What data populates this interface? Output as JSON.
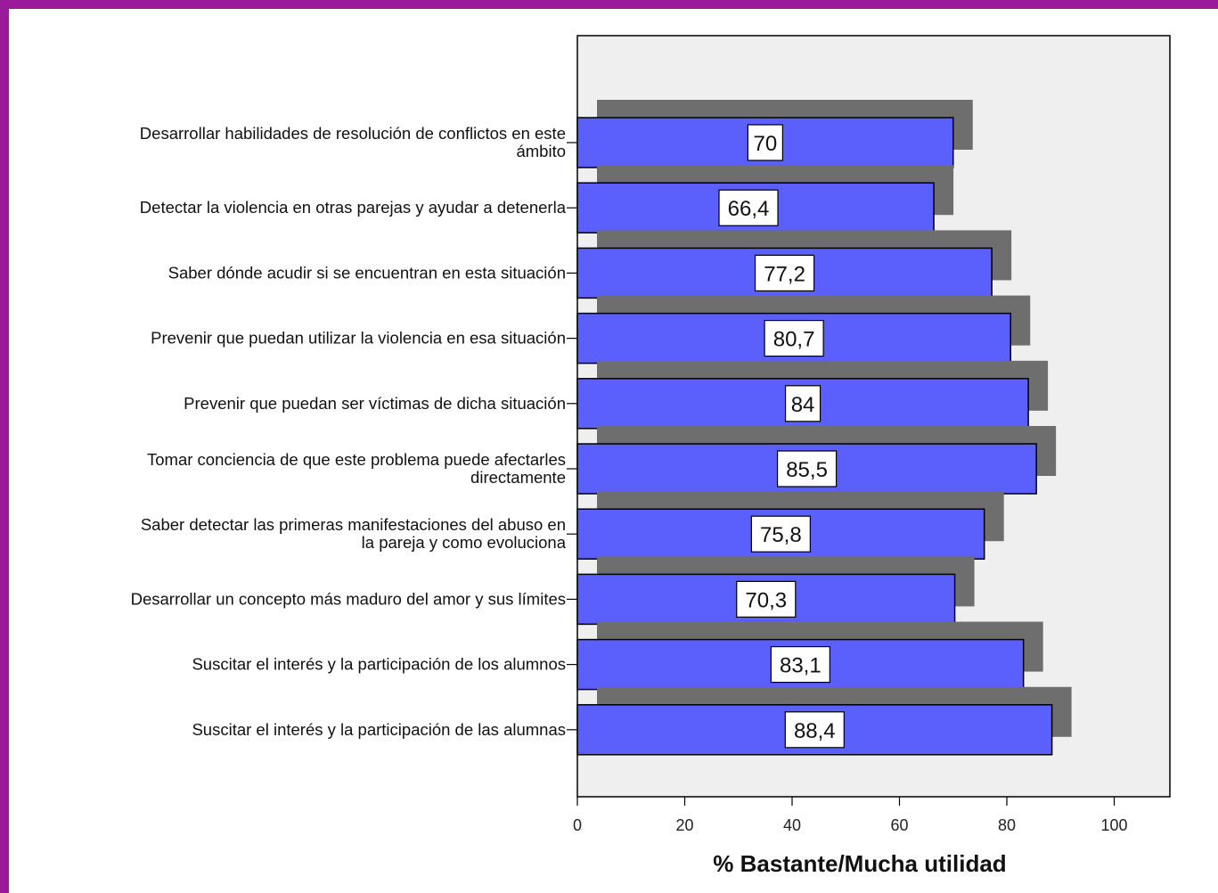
{
  "chart_data": {
    "type": "bar",
    "orientation": "horizontal",
    "categories": [
      [
        "Desarrollar habilidades de resolución de conflictos en este",
        "ámbito"
      ],
      [
        "Detectar la violencia en otras parejas y ayudar a detenerla"
      ],
      [
        "Saber dónde acudir si se encuentran en esta situación"
      ],
      [
        "Prevenir que puedan utilizar la violencia en esa situación"
      ],
      [
        "Prevenir que puedan ser víctimas de dicha situación"
      ],
      [
        "Tomar conciencia de que este problema puede afectarles",
        "directamente"
      ],
      [
        "Saber detectar las primeras manifestaciones del abuso en",
        "la pareja y como evoluciona"
      ],
      [
        "Desarrollar un concepto más maduro del amor y sus límites"
      ],
      [
        "Suscitar el interés y la participación de los alumnos"
      ],
      [
        "Suscitar el interés y la participación de las alumnas"
      ]
    ],
    "values": [
      70,
      66.4,
      77.2,
      80.7,
      84,
      85.5,
      75.8,
      70.3,
      83.1,
      88.4
    ],
    "value_labels": [
      "70",
      "66,4",
      "77,2",
      "80,7",
      "84",
      "85,5",
      "75,8",
      "70,3",
      "83,1",
      "88,4"
    ],
    "xlabel": "% Bastante/Mucha utilidad",
    "ylabel": "",
    "title": "",
    "xlim": [
      0,
      110
    ],
    "xticks": [
      0,
      20,
      40,
      60,
      80,
      100
    ],
    "grid": false,
    "legend": "none",
    "colors": {
      "bar": "#5b5ffb",
      "shadow": "#6e6e6e",
      "plot_background": "#efefef",
      "frame_border": "#9a1a9a"
    }
  }
}
